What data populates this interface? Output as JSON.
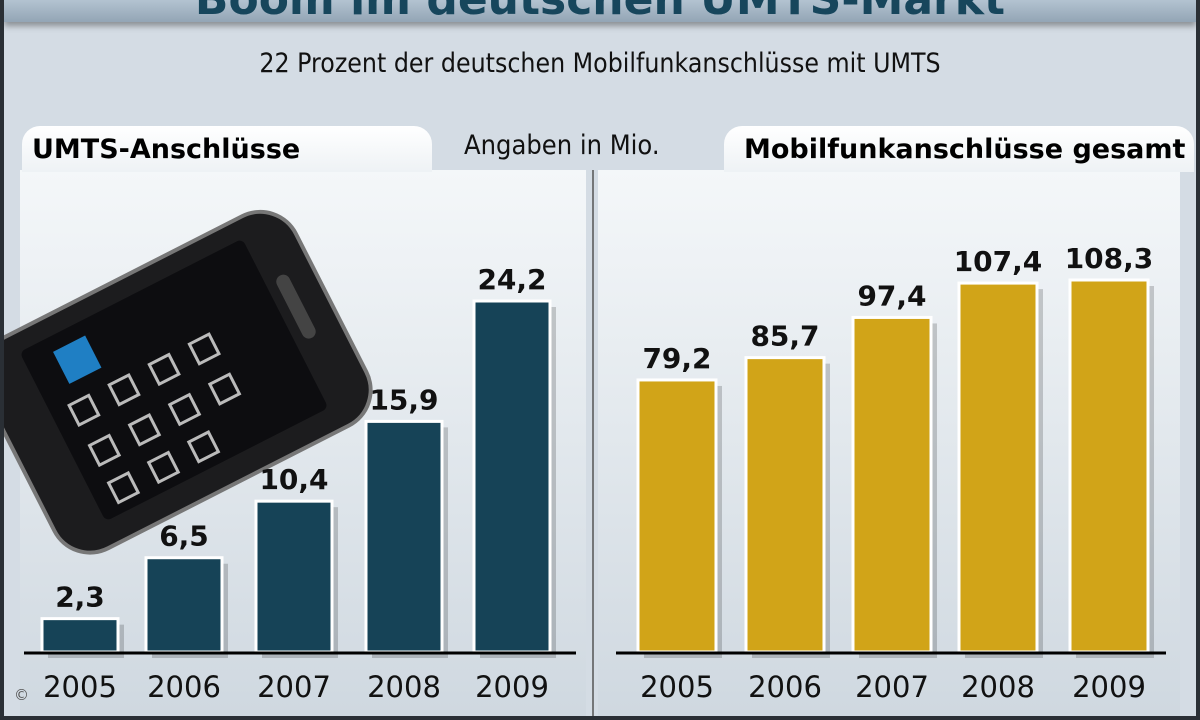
{
  "title": "Boom im deutschen UMTS-Markt",
  "subtitle": "22 Prozent der deutschen Mobilfunkanschlüsse mit UMTS",
  "unit_note": "Angaben in Mio.",
  "copyright": "©",
  "colors": {
    "umts": "#164357",
    "total": "#d1a418",
    "background": "#d4dce4"
  },
  "chart_data": [
    {
      "type": "bar",
      "title": "UMTS-Anschlüsse",
      "categories": [
        "2005",
        "2006",
        "2007",
        "2008",
        "2009"
      ],
      "values": [
        2.3,
        6.5,
        10.4,
        15.9,
        24.2
      ],
      "labels": [
        "2,3",
        "6,5",
        "10,4",
        "15,9",
        "24,2"
      ],
      "ylim": [
        0,
        24.2
      ],
      "grid": false
    },
    {
      "type": "bar",
      "title": "Mobilfunkanschlüsse gesamt",
      "categories": [
        "2005",
        "2006",
        "2007",
        "2008",
        "2009"
      ],
      "values": [
        79.2,
        85.7,
        97.4,
        107.4,
        108.3
      ],
      "labels": [
        "79,2",
        "85,7",
        "97,4",
        "107,4",
        "108,3"
      ],
      "ylim": [
        0,
        108.3
      ],
      "grid": false
    }
  ]
}
